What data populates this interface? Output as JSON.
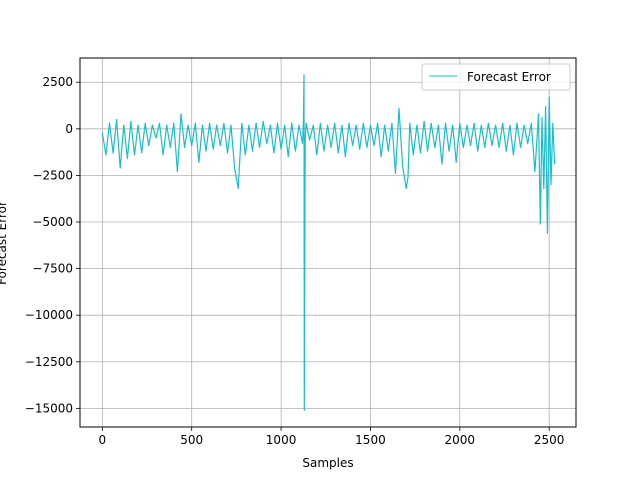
{
  "chart_data": {
    "type": "line",
    "title": "",
    "xlabel": "Samples",
    "ylabel": "Forecast Error",
    "xlim": [
      -125,
      2650
    ],
    "ylim": [
      -16000,
      3800
    ],
    "xticks": [
      0,
      500,
      1000,
      1500,
      2000,
      2500
    ],
    "xtick_labels": [
      "0",
      "500",
      "1000",
      "1500",
      "2000",
      "2500"
    ],
    "yticks": [
      2500,
      0,
      -2500,
      -5000,
      -7500,
      -10000,
      -12500,
      -15000
    ],
    "ytick_labels": [
      "2500",
      "0",
      "−2500",
      "−5000",
      "−7500",
      "−10000",
      "−12500",
      "−15000"
    ],
    "grid": true,
    "legend": {
      "placement": "top-right",
      "entries": [
        "Forecast Error"
      ]
    },
    "series": [
      {
        "name": "Forecast Error",
        "color": "#17becf",
        "x": [
          0,
          20,
          40,
          60,
          80,
          100,
          120,
          140,
          160,
          180,
          200,
          220,
          240,
          260,
          280,
          300,
          320,
          340,
          360,
          380,
          400,
          420,
          440,
          460,
          480,
          500,
          520,
          540,
          560,
          580,
          600,
          620,
          640,
          660,
          680,
          700,
          720,
          740,
          760,
          780,
          800,
          820,
          840,
          860,
          880,
          900,
          920,
          940,
          960,
          980,
          1000,
          1020,
          1040,
          1060,
          1080,
          1100,
          1120,
          1125,
          1128,
          1130,
          1135,
          1140,
          1160,
          1180,
          1200,
          1220,
          1240,
          1260,
          1280,
          1300,
          1320,
          1340,
          1360,
          1380,
          1400,
          1420,
          1440,
          1460,
          1480,
          1500,
          1520,
          1540,
          1560,
          1580,
          1600,
          1620,
          1640,
          1660,
          1680,
          1700,
          1710,
          1720,
          1740,
          1760,
          1780,
          1800,
          1820,
          1840,
          1860,
          1880,
          1900,
          1920,
          1940,
          1960,
          1980,
          2000,
          2020,
          2040,
          2060,
          2080,
          2100,
          2120,
          2140,
          2160,
          2180,
          2200,
          2220,
          2240,
          2260,
          2280,
          2300,
          2320,
          2340,
          2360,
          2380,
          2400,
          2420,
          2440,
          2450,
          2460,
          2470,
          2480,
          2490,
          2500,
          2510,
          2520,
          2530
        ],
        "y": [
          -200,
          -1400,
          300,
          -1300,
          500,
          -2100,
          200,
          -1600,
          400,
          -1400,
          200,
          -1300,
          300,
          -900,
          200,
          -500,
          300,
          -1400,
          200,
          -1000,
          300,
          -2300,
          800,
          -1000,
          200,
          -900,
          300,
          -1800,
          200,
          -1200,
          300,
          -1100,
          200,
          -900,
          300,
          -1300,
          200,
          -2100,
          -3200,
          300,
          -1400,
          200,
          -1200,
          300,
          -1000,
          400,
          -800,
          200,
          -1300,
          300,
          -1100,
          200,
          -1500,
          300,
          -1200,
          200,
          -800,
          300,
          2900,
          -15100,
          -500,
          300,
          -600,
          200,
          -1400,
          300,
          -1200,
          200,
          -1000,
          300,
          -1300,
          200,
          -1500,
          300,
          -900,
          200,
          -1100,
          300,
          -1000,
          200,
          -900,
          300,
          -1500,
          200,
          -1200,
          300,
          -2400,
          1100,
          -2000,
          -3200,
          -2600,
          300,
          -1400,
          200,
          -1300,
          400,
          -1200,
          300,
          -1000,
          200,
          -1900,
          300,
          -1200,
          200,
          -1800,
          300,
          -1000,
          200,
          -900,
          300,
          -1200,
          200,
          -1000,
          300,
          -900,
          200,
          -1000,
          300,
          -1200,
          200,
          -1400,
          300,
          -1000,
          200,
          -800,
          300,
          -2300,
          800,
          -5100,
          600,
          -3200,
          1200,
          -5600,
          1700,
          -3000,
          300,
          -1900
        ]
      }
    ]
  }
}
